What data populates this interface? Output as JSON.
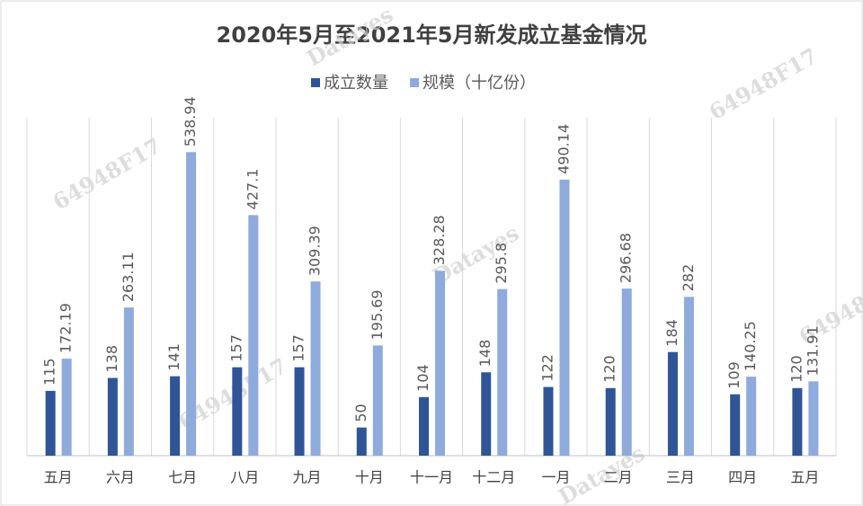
{
  "chart_data": {
    "type": "bar",
    "title": "2020年5月至2021年5月新发成立基金情况",
    "categories": [
      "五月",
      "六月",
      "七月",
      "八月",
      "九月",
      "十月",
      "十一月",
      "十二月",
      "一月",
      "二月",
      "三月",
      "四月",
      "五月"
    ],
    "series": [
      {
        "name": "成立数量",
        "color": "#2f5597",
        "values": [
          115,
          138,
          141,
          157,
          157,
          50,
          104,
          148,
          122,
          120,
          184,
          109,
          120
        ]
      },
      {
        "name": "规模（十亿份）",
        "color": "#8faadc",
        "values": [
          172.19,
          263.11,
          538.94,
          427.1,
          309.39,
          195.69,
          328.28,
          295.8,
          490.14,
          296.68,
          282,
          140.25,
          131.91
        ]
      }
    ],
    "ylim": [
      0,
      600
    ],
    "legend": "top",
    "watermarks": [
      "Datayes",
      "64948F17",
      "64948F17",
      "64948F17",
      "Datayes",
      "64948F17",
      "Datayes"
    ]
  }
}
